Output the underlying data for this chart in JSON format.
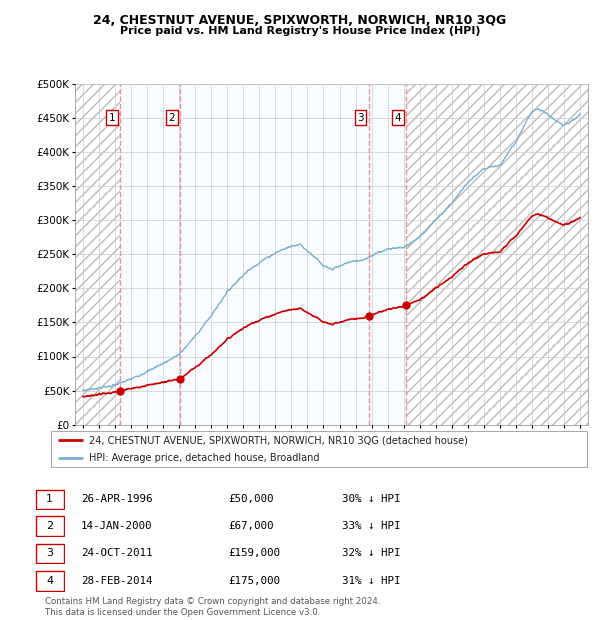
{
  "title": "24, CHESTNUT AVENUE, SPIXWORTH, NORWICH, NR10 3QG",
  "subtitle": "Price paid vs. HM Land Registry's House Price Index (HPI)",
  "sale_dates": [
    1996.32,
    2000.04,
    2011.81,
    2014.16
  ],
  "sale_prices": [
    50000,
    67000,
    159000,
    175000
  ],
  "sale_labels": [
    "1",
    "2",
    "3",
    "4"
  ],
  "hpi_line_color": "#7ab0d4",
  "price_line_color": "#cc0000",
  "sale_dot_color": "#cc0000",
  "vline_color": "#ee8888",
  "shade_color": "#ddeeff",
  "ylim": [
    0,
    500000
  ],
  "yticks": [
    0,
    50000,
    100000,
    150000,
    200000,
    250000,
    300000,
    350000,
    400000,
    450000,
    500000
  ],
  "ytick_labels": [
    "£0",
    "£50K",
    "£100K",
    "£150K",
    "£200K",
    "£250K",
    "£300K",
    "£350K",
    "£400K",
    "£450K",
    "£500K"
  ],
  "xlim": [
    1993.5,
    2025.5
  ],
  "xtick_years": [
    1994,
    1995,
    1996,
    1997,
    1998,
    1999,
    2000,
    2001,
    2002,
    2003,
    2004,
    2005,
    2006,
    2007,
    2008,
    2009,
    2010,
    2011,
    2012,
    2013,
    2014,
    2015,
    2016,
    2017,
    2018,
    2019,
    2020,
    2021,
    2022,
    2023,
    2024,
    2025
  ],
  "legend_entries": [
    "24, CHESTNUT AVENUE, SPIXWORTH, NORWICH, NR10 3QG (detached house)",
    "HPI: Average price, detached house, Broadland"
  ],
  "table_data": [
    [
      "1",
      "26-APR-1996",
      "£50,000",
      "30% ↓ HPI"
    ],
    [
      "2",
      "14-JAN-2000",
      "£67,000",
      "33% ↓ HPI"
    ],
    [
      "3",
      "24-OCT-2011",
      "£159,000",
      "32% ↓ HPI"
    ],
    [
      "4",
      "28-FEB-2014",
      "£175,000",
      "31% ↓ HPI"
    ]
  ],
  "footnote": "Contains HM Land Registry data © Crown copyright and database right 2024.\nThis data is licensed under the Open Government Licence v3.0.",
  "bg_color": "#ffffff",
  "grid_color": "#cccccc"
}
